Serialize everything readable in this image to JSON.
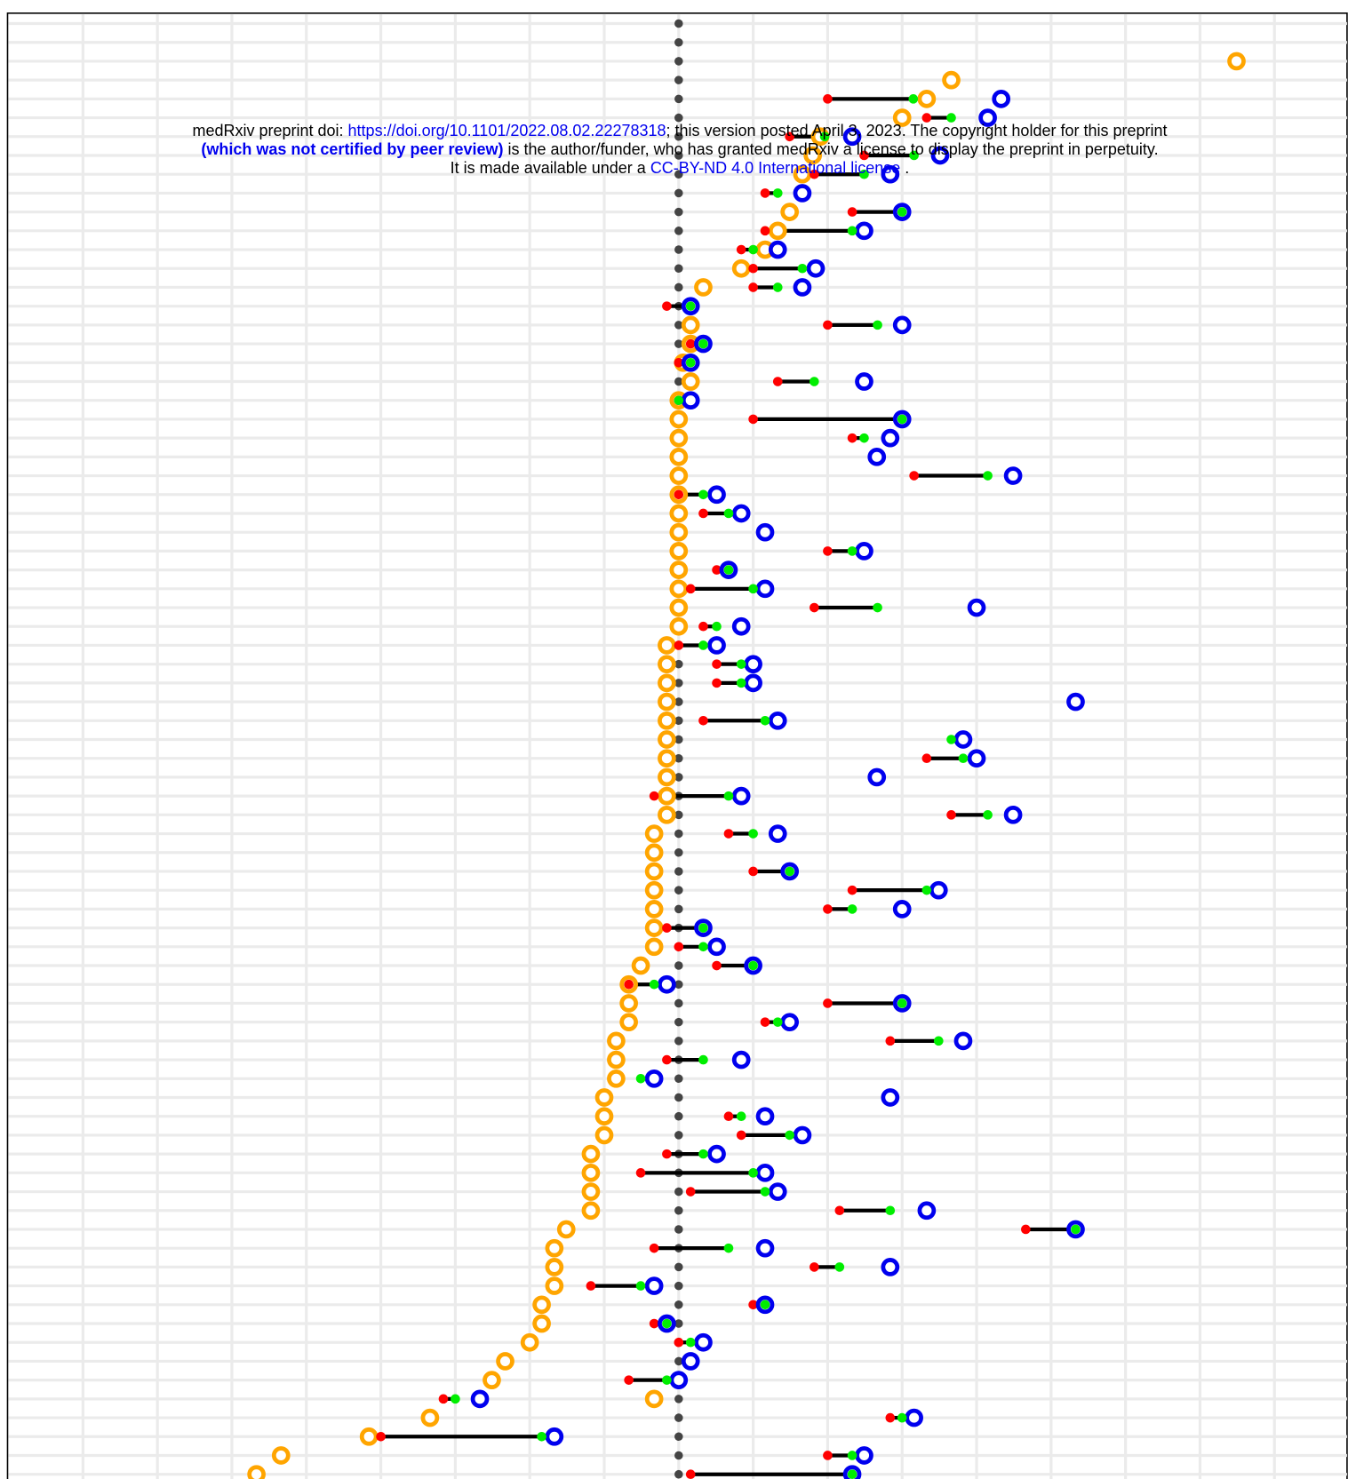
{
  "chart_data": {
    "type": "dotplot",
    "categories": [
      null,
      null,
      null,
      null,
      null,
      null,
      null,
      null,
      null,
      null,
      null,
      null,
      null,
      null,
      null,
      null,
      null,
      null,
      null,
      null,
      null,
      null,
      null,
      null,
      null,
      null,
      null,
      null,
      null,
      null,
      null,
      null,
      null,
      null,
      null,
      null,
      null,
      null,
      null,
      null,
      null,
      null,
      null,
      null,
      null,
      null,
      null,
      null,
      null,
      null,
      null,
      null,
      null,
      null,
      null,
      null,
      null,
      null,
      null,
      null,
      null,
      null,
      null,
      null,
      null,
      null,
      null,
      null,
      null,
      null,
      null,
      null,
      null,
      null,
      null,
      null,
      null,
      null
    ],
    "xlim": [
      -9,
      9
    ],
    "xgrid": [
      -8,
      -7,
      -6,
      -5,
      -4,
      -3,
      -2,
      -1,
      0,
      1,
      2,
      3,
      4,
      5,
      6,
      7,
      8
    ],
    "grid": true,
    "connect": {
      "from": 2,
      "to": 4,
      "color": "#000000"
    },
    "series": [
      {
        "color": "#444444",
        "shape": "dot",
        "values": [
          0,
          0,
          0,
          0,
          0,
          0,
          0,
          0,
          0,
          0,
          0,
          0,
          0,
          0,
          0,
          0,
          0,
          0,
          0,
          0,
          0,
          0,
          0,
          0,
          0,
          0,
          0,
          0,
          0,
          0,
          0,
          0,
          0,
          0,
          0,
          0,
          0,
          0,
          0,
          0,
          0,
          0,
          0,
          0,
          0,
          0,
          0,
          0,
          0,
          0,
          0,
          0,
          0,
          0,
          0,
          0,
          0,
          0,
          0,
          0,
          0,
          0,
          0,
          0,
          0,
          0,
          0,
          0,
          0,
          0,
          0,
          0,
          0,
          0,
          0,
          0,
          0,
          0
        ]
      },
      {
        "color": "#ffa500",
        "shape": "ring",
        "values": [
          null,
          null,
          7.49,
          3.66,
          3.33,
          3.0,
          1.9,
          1.8,
          1.66,
          null,
          1.49,
          1.33,
          1.16,
          0.84,
          0.33,
          null,
          0.16,
          0.16,
          0.06,
          0.16,
          0,
          0,
          0,
          0,
          0,
          0,
          0,
          0,
          0,
          0,
          0,
          0,
          0,
          -0.16,
          -0.16,
          -0.16,
          -0.16,
          -0.16,
          -0.16,
          -0.16,
          -0.16,
          -0.16,
          -0.16,
          -0.33,
          -0.33,
          -0.33,
          -0.33,
          -0.33,
          -0.33,
          -0.33,
          -0.51,
          -0.67,
          -0.67,
          -0.67,
          -0.84,
          -0.84,
          -0.84,
          -1.0,
          -1.0,
          -1.0,
          -1.18,
          -1.18,
          -1.18,
          -1.18,
          -1.51,
          -1.67,
          -1.67,
          -1.67,
          -1.84,
          -1.84,
          -2.0,
          -2.33,
          -2.51,
          -0.33,
          -3.34,
          -4.16,
          -5.34,
          -5.67
        ]
      },
      {
        "color": "#ff0000",
        "shape": "dot",
        "values": [
          null,
          null,
          null,
          null,
          2.0,
          3.33,
          1.49,
          2.49,
          1.82,
          1.16,
          2.33,
          1.16,
          0.84,
          1.0,
          1.0,
          -0.16,
          2.0,
          0.16,
          0,
          1.33,
          0,
          1.0,
          2.33,
          null,
          3.16,
          0,
          0.33,
          null,
          2.0,
          0.51,
          0.16,
          1.82,
          0.33,
          0,
          0.51,
          0.51,
          null,
          0.33,
          null,
          3.33,
          null,
          -0.33,
          3.66,
          0.67,
          null,
          1.0,
          2.33,
          2.0,
          -0.16,
          0,
          0.51,
          -0.67,
          2.0,
          1.16,
          2.84,
          -0.16,
          null,
          null,
          0.67,
          0.84,
          -0.16,
          -0.51,
          0.16,
          2.16,
          4.66,
          -0.33,
          1.82,
          -1.18,
          1.0,
          -0.33,
          0,
          null,
          -0.67,
          -3.16,
          2.84,
          -4.0,
          2.0,
          0.16
        ]
      },
      {
        "color": "#0000ee",
        "shape": "ring",
        "values": [
          null,
          null,
          null,
          null,
          4.33,
          4.15,
          2.33,
          3.51,
          2.84,
          1.66,
          3.0,
          2.49,
          1.33,
          1.84,
          1.66,
          0.16,
          3.0,
          0.33,
          0.16,
          2.49,
          0.16,
          3.0,
          2.84,
          2.66,
          4.49,
          0.51,
          0.84,
          1.16,
          2.49,
          0.67,
          1.16,
          4.0,
          0.84,
          0.51,
          1.0,
          1.0,
          5.33,
          1.33,
          3.82,
          4.0,
          2.66,
          0.84,
          4.49,
          1.33,
          null,
          1.49,
          3.49,
          3.0,
          0.33,
          0.51,
          1.0,
          -0.16,
          3.0,
          1.49,
          3.82,
          0.84,
          -0.33,
          2.84,
          1.16,
          1.66,
          0.51,
          1.16,
          1.33,
          3.33,
          5.33,
          1.16,
          2.84,
          -0.33,
          1.16,
          -0.16,
          0.33,
          0.16,
          0,
          -2.67,
          3.16,
          -1.67,
          2.49,
          2.33
        ]
      },
      {
        "color": "#00ee00",
        "shape": "dot",
        "values": [
          null,
          null,
          null,
          null,
          3.15,
          3.66,
          1.96,
          3.16,
          2.49,
          1.33,
          3.0,
          2.33,
          1.0,
          1.66,
          1.33,
          0.16,
          2.67,
          0.33,
          0.16,
          1.82,
          0,
          3.0,
          2.49,
          null,
          4.15,
          0.33,
          0.67,
          null,
          2.33,
          0.67,
          1.0,
          2.67,
          0.51,
          0.33,
          0.84,
          0.84,
          null,
          1.16,
          3.66,
          3.82,
          null,
          0.67,
          4.15,
          1.0,
          null,
          1.49,
          3.33,
          2.33,
          0.33,
          0.33,
          1.0,
          -0.33,
          3.0,
          1.33,
          3.49,
          0.33,
          -0.51,
          null,
          0.84,
          1.49,
          0.33,
          1.0,
          1.16,
          2.84,
          5.33,
          0.67,
          2.16,
          -0.51,
          1.16,
          -0.16,
          0.16,
          null,
          -0.16,
          -3.0,
          3.0,
          -1.84,
          2.33,
          2.33
        ]
      }
    ]
  },
  "header": {
    "line1": [
      "medRxiv preprint doi: ",
      "https://doi.org/10.1101/2022.08.02.22278318",
      "; this version posted April 3, 2023. The copyright holder for this preprint"
    ],
    "line2": [
      "(which was not certified by peer review)",
      " is the author/funder, who has granted medRxiv a license to display the preprint in perpetuity."
    ],
    "line3": [
      "It is made available under a ",
      "CC-BY-ND 4.0 International license",
      " ."
    ]
  }
}
